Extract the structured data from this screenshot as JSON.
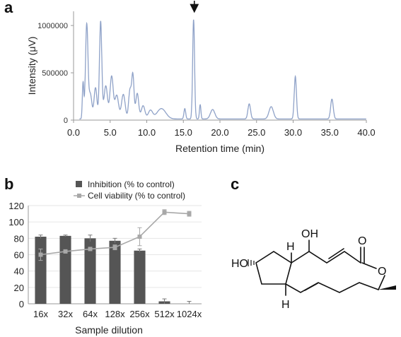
{
  "figure": {
    "panels": [
      {
        "letter": "a"
      },
      {
        "letter": "b"
      },
      {
        "letter": "c"
      }
    ]
  },
  "chart_data": [
    {
      "panel": "a",
      "type": "line",
      "xlabel": "Retention time (min)",
      "ylabel": "Intensity (μV)",
      "xlim": [
        0,
        40
      ],
      "ylim": [
        0,
        1150000
      ],
      "x_ticks": [
        "0.0",
        "5.0",
        "10.0",
        "15.0",
        "20.0",
        "25.0",
        "30.0",
        "35.0",
        "40.0"
      ],
      "y_ticks": [
        {
          "value": 0,
          "label": "0"
        },
        {
          "value": 500000,
          "label": "500000"
        },
        {
          "value": 1000000,
          "label": "1000000"
        }
      ],
      "grid": false,
      "color": "#8fa2c8",
      "baseline": 12000,
      "peak_marker": {
        "x": 16.5,
        "symbol": "↓"
      },
      "peaks": [
        {
          "x": 1.3,
          "y": 380000,
          "w": 0.1
        },
        {
          "x": 1.8,
          "y": 1000000,
          "w": 0.17
        },
        {
          "x": 2.3,
          "y": 260000,
          "w": 0.2
        },
        {
          "x": 3.0,
          "y": 330000,
          "w": 0.2
        },
        {
          "x": 3.7,
          "y": 1030000,
          "w": 0.16
        },
        {
          "x": 4.4,
          "y": 350000,
          "w": 0.24
        },
        {
          "x": 5.2,
          "y": 450000,
          "w": 0.22
        },
        {
          "x": 5.9,
          "y": 250000,
          "w": 0.25
        },
        {
          "x": 6.8,
          "y": 260000,
          "w": 0.25
        },
        {
          "x": 7.7,
          "y": 300000,
          "w": 0.18
        },
        {
          "x": 8.1,
          "y": 460000,
          "w": 0.16
        },
        {
          "x": 8.7,
          "y": 270000,
          "w": 0.2
        },
        {
          "x": 9.5,
          "y": 140000,
          "w": 0.25
        },
        {
          "x": 10.5,
          "y": 90000,
          "w": 0.3
        },
        {
          "x": 12.0,
          "y": 110000,
          "w": 0.6
        },
        {
          "x": 15.2,
          "y": 110000,
          "w": 0.12
        },
        {
          "x": 16.4,
          "y": 1050000,
          "w": 0.13
        },
        {
          "x": 17.3,
          "y": 150000,
          "w": 0.1
        },
        {
          "x": 19.0,
          "y": 100000,
          "w": 0.3
        },
        {
          "x": 24.0,
          "y": 160000,
          "w": 0.18
        },
        {
          "x": 27.0,
          "y": 130000,
          "w": 0.3
        },
        {
          "x": 30.3,
          "y": 450000,
          "w": 0.15
        },
        {
          "x": 35.3,
          "y": 210000,
          "w": 0.18
        }
      ]
    },
    {
      "panel": "b",
      "type": "bar",
      "xlabel": "Sample dilution",
      "ylabel": "",
      "categories": [
        "16x",
        "32x",
        "64x",
        "128x",
        "256x",
        "512x",
        "1024x"
      ],
      "ylim": [
        0,
        120
      ],
      "y_ticks": [
        0,
        20,
        40,
        60,
        80,
        100,
        120
      ],
      "grid": true,
      "legend_position": "top",
      "series": [
        {
          "name": "Inhibition (% to control)",
          "kind": "bar",
          "color": "#555555",
          "values": [
            82,
            83,
            80,
            77,
            65,
            3,
            0
          ],
          "errors": [
            2,
            1,
            4,
            3,
            2,
            3,
            3
          ]
        },
        {
          "name": "Cell viability (% to control)",
          "kind": "line",
          "color": "#a8a8a8",
          "values": [
            60,
            64,
            67,
            69,
            82,
            112,
            110
          ],
          "errors": [
            7,
            2,
            2,
            3,
            11,
            3,
            3
          ]
        }
      ]
    }
  ],
  "structure": {
    "atoms": {
      "oh_top": "OH",
      "oh_left": "HO",
      "carbonyl_o": "O",
      "ring_o": "O",
      "h_top": "H",
      "h_bottom": "H"
    }
  }
}
